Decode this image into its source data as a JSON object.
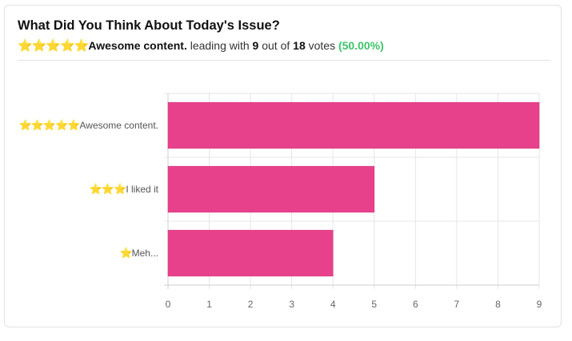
{
  "poll": {
    "question": "What Did You Think About Today's Issue?",
    "summary": {
      "leader_stars": "⭐⭐⭐⭐⭐",
      "leader_label": "Awesome content.",
      "leading_with_text": " leading with ",
      "leader_votes": "9",
      "out_of_text": " out of ",
      "total_votes": "18",
      "votes_text": " votes ",
      "percent": "(50.00%)"
    }
  },
  "colors": {
    "bar": "#e8418c",
    "percent": "#3cc46a",
    "grid": "#e6e6e6"
  },
  "chart_data": {
    "type": "bar",
    "orientation": "horizontal",
    "categories": [
      {
        "stars": "⭐⭐⭐⭐⭐",
        "label": "Awesome content."
      },
      {
        "stars": "⭐⭐⭐",
        "label": "I liked it"
      },
      {
        "stars": "⭐",
        "label": "Meh..."
      }
    ],
    "values": [
      9,
      5,
      4
    ],
    "xlim": [
      0,
      9
    ],
    "xticks": [
      "0",
      "1",
      "2",
      "3",
      "4",
      "5",
      "6",
      "7",
      "8",
      "9"
    ],
    "grid": true
  }
}
